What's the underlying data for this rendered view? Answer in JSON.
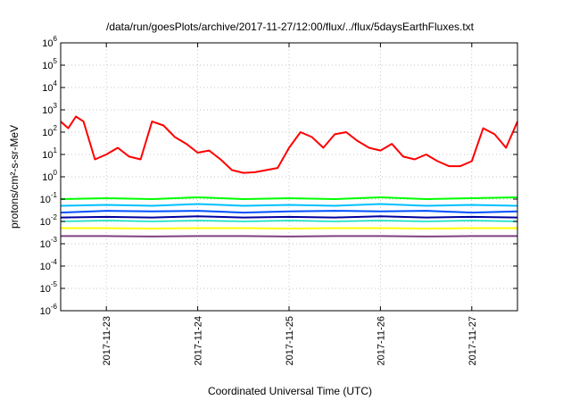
{
  "chart_data": {
    "type": "line",
    "title": "/data/run/goesPlots/archive/2017-11-27/12:00/flux/../flux/5daysEarthFluxes.txt",
    "xlabel": "Coordinated Universal Time (UTC)",
    "ylabel": "protons/cm²-s-sr-MeV",
    "y_scale": "log",
    "ylim": [
      1e-06,
      1000000.0
    ],
    "xlim": [
      "2017-11-22T12:00",
      "2017-11-27T12:00"
    ],
    "grid": true,
    "x_ticks": [
      "2017-11-23",
      "2017-11-24",
      "2017-11-25",
      "2017-11-26",
      "2017-11-27"
    ],
    "y_ticks": [
      {
        "base": "10",
        "exp": "-6"
      },
      {
        "base": "10",
        "exp": "-5"
      },
      {
        "base": "10",
        "exp": "-4"
      },
      {
        "base": "10",
        "exp": "-3"
      },
      {
        "base": "10",
        "exp": "-2"
      },
      {
        "base": "10",
        "exp": "-1"
      },
      {
        "base": "10",
        "exp": "0"
      },
      {
        "base": "10",
        "exp": "1"
      },
      {
        "base": "10",
        "exp": "2"
      },
      {
        "base": "10",
        "exp": "3"
      },
      {
        "base": "10",
        "exp": "4"
      },
      {
        "base": "10",
        "exp": "5"
      },
      {
        "base": "10",
        "exp": "6"
      }
    ],
    "series": [
      {
        "color": "#ff0000",
        "width": 2,
        "x": [
          "2017-11-22T12:00",
          "2017-11-22T14:00",
          "2017-11-22T16:00",
          "2017-11-22T18:00",
          "2017-11-22T21:00",
          "2017-11-23T00:00",
          "2017-11-23T03:00",
          "2017-11-23T06:00",
          "2017-11-23T09:00",
          "2017-11-23T12:00",
          "2017-11-23T15:00",
          "2017-11-23T18:00",
          "2017-11-23T21:00",
          "2017-11-24T00:00",
          "2017-11-24T03:00",
          "2017-11-24T06:00",
          "2017-11-24T09:00",
          "2017-11-24T12:00",
          "2017-11-24T15:00",
          "2017-11-24T18:00",
          "2017-11-24T21:00",
          "2017-11-25T00:00",
          "2017-11-25T03:00",
          "2017-11-25T06:00",
          "2017-11-25T09:00",
          "2017-11-25T12:00",
          "2017-11-25T15:00",
          "2017-11-25T18:00",
          "2017-11-25T21:00",
          "2017-11-26T00:00",
          "2017-11-26T03:00",
          "2017-11-26T06:00",
          "2017-11-26T09:00",
          "2017-11-26T12:00",
          "2017-11-26T15:00",
          "2017-11-26T18:00",
          "2017-11-26T21:00",
          "2017-11-27T00:00",
          "2017-11-27T03:00",
          "2017-11-27T06:00",
          "2017-11-27T09:00",
          "2017-11-27T12:00"
        ],
        "y": [
          300,
          150,
          500,
          300,
          6,
          10,
          20,
          8,
          6,
          300,
          200,
          60,
          30,
          12,
          15,
          6,
          2,
          1.5,
          1.6,
          2,
          2.5,
          20,
          100,
          60,
          20,
          80,
          100,
          40,
          20,
          15,
          30,
          8,
          6,
          10,
          5,
          3,
          3,
          5,
          150,
          80,
          20,
          300
        ]
      },
      {
        "color": "#00ff00",
        "width": 2,
        "x": [
          "2017-11-22T12:00",
          "2017-11-23T00:00",
          "2017-11-23T12:00",
          "2017-11-24T00:00",
          "2017-11-24T12:00",
          "2017-11-25T00:00",
          "2017-11-25T12:00",
          "2017-11-26T00:00",
          "2017-11-26T12:00",
          "2017-11-27T00:00",
          "2017-11-27T12:00"
        ],
        "y": [
          0.1,
          0.11,
          0.1,
          0.12,
          0.1,
          0.11,
          0.1,
          0.12,
          0.1,
          0.11,
          0.12
        ]
      },
      {
        "color": "#00c0ff",
        "width": 2,
        "x": [
          "2017-11-22T12:00",
          "2017-11-23T00:00",
          "2017-11-23T12:00",
          "2017-11-24T00:00",
          "2017-11-24T12:00",
          "2017-11-25T00:00",
          "2017-11-25T12:00",
          "2017-11-26T00:00",
          "2017-11-26T12:00",
          "2017-11-27T00:00",
          "2017-11-27T12:00"
        ],
        "y": [
          0.05,
          0.055,
          0.05,
          0.06,
          0.05,
          0.055,
          0.05,
          0.06,
          0.05,
          0.055,
          0.05
        ]
      },
      {
        "color": "#0050ff",
        "width": 2,
        "x": [
          "2017-11-22T12:00",
          "2017-11-23T00:00",
          "2017-11-23T12:00",
          "2017-11-24T00:00",
          "2017-11-24T12:00",
          "2017-11-25T00:00",
          "2017-11-25T12:00",
          "2017-11-26T00:00",
          "2017-11-26T12:00",
          "2017-11-27T00:00",
          "2017-11-27T12:00"
        ],
        "y": [
          0.025,
          0.03,
          0.028,
          0.03,
          0.025,
          0.028,
          0.03,
          0.028,
          0.03,
          0.025,
          0.028
        ]
      },
      {
        "color": "#0000a0",
        "width": 2,
        "x": [
          "2017-11-22T12:00",
          "2017-11-23T00:00",
          "2017-11-23T12:00",
          "2017-11-24T00:00",
          "2017-11-24T12:00",
          "2017-11-25T00:00",
          "2017-11-25T12:00",
          "2017-11-26T00:00",
          "2017-11-26T12:00",
          "2017-11-27T00:00",
          "2017-11-27T12:00"
        ],
        "y": [
          0.015,
          0.016,
          0.015,
          0.017,
          0.015,
          0.016,
          0.015,
          0.017,
          0.015,
          0.016,
          0.015
        ]
      },
      {
        "color": "#00e0c0",
        "width": 1.5,
        "x": [
          "2017-11-22T12:00",
          "2017-11-23T00:00",
          "2017-11-23T12:00",
          "2017-11-24T00:00",
          "2017-11-24T12:00",
          "2017-11-25T00:00",
          "2017-11-25T12:00",
          "2017-11-26T00:00",
          "2017-11-26T12:00",
          "2017-11-27T00:00",
          "2017-11-27T12:00"
        ],
        "y": [
          0.01,
          0.011,
          0.01,
          0.011,
          0.01,
          0.011,
          0.01,
          0.011,
          0.01,
          0.011,
          0.01
        ]
      },
      {
        "color": "#ffff00",
        "width": 2,
        "x": [
          "2017-11-22T12:00",
          "2017-11-23T00:00",
          "2017-11-23T12:00",
          "2017-11-24T00:00",
          "2017-11-24T12:00",
          "2017-11-25T00:00",
          "2017-11-25T12:00",
          "2017-11-26T00:00",
          "2017-11-26T12:00",
          "2017-11-27T00:00",
          "2017-11-27T12:00"
        ],
        "y": [
          0.005,
          0.005,
          0.0048,
          0.005,
          0.005,
          0.0048,
          0.005,
          0.005,
          0.0048,
          0.005,
          0.005
        ]
      },
      {
        "color": "#804080",
        "width": 2,
        "x": [
          "2017-11-22T12:00",
          "2017-11-23T00:00",
          "2017-11-23T12:00",
          "2017-11-24T00:00",
          "2017-11-24T12:00",
          "2017-11-25T00:00",
          "2017-11-25T12:00",
          "2017-11-26T00:00",
          "2017-11-26T12:00",
          "2017-11-27T00:00",
          "2017-11-27T12:00"
        ],
        "y": [
          0.0022,
          0.0022,
          0.0021,
          0.0022,
          0.0022,
          0.0021,
          0.0022,
          0.0022,
          0.0021,
          0.0022,
          0.0022
        ]
      }
    ]
  }
}
